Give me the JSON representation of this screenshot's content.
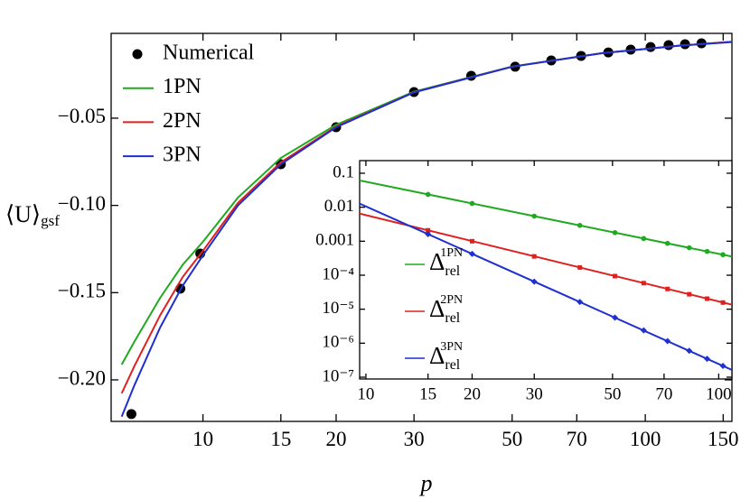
{
  "chart_data": [
    {
      "type": "line",
      "xlabel": "p",
      "ylabel": "⟨U⟩",
      "ylabel_sub": "gsf",
      "xscale": "log",
      "xlim": [
        6.2,
        157
      ],
      "xticks": [
        10,
        15,
        20,
        30,
        50,
        70,
        100,
        150
      ],
      "ylim": [
        -0.2238,
        -0.0014
      ],
      "yticks": [
        {
          "value": -0.2,
          "label": "−0.20"
        },
        {
          "value": -0.15,
          "label": "−0.15"
        },
        {
          "value": -0.1,
          "label": "−0.10"
        },
        {
          "value": -0.05,
          "label": "−0.05"
        }
      ],
      "series": [
        {
          "name": "Numerical",
          "type": "scatter",
          "color": "#000000",
          "x": [
            6.89,
            8.89,
            9.86,
            15,
            20,
            30,
            40.4,
            50.8,
            61.3,
            71.6,
            82.5,
            92.7,
            102.8,
            112.9,
            123,
            134
          ],
          "values": [
            -0.2196,
            -0.1477,
            -0.1276,
            -0.0764,
            -0.0552,
            -0.035,
            -0.0257,
            -0.0205,
            -0.0169,
            -0.0143,
            -0.0123,
            -0.0107,
            -0.0092,
            -0.0081,
            -0.0076,
            -0.0071
          ]
        },
        {
          "name": "1PN",
          "color": "#1faa1f",
          "x": [
            6.55,
            7,
            8,
            9,
            10,
            12,
            15,
            20,
            30,
            50,
            80,
            120,
            157
          ],
          "values": [
            -0.1912,
            -0.178,
            -0.153,
            -0.134,
            -0.1208,
            -0.0955,
            -0.0728,
            -0.0538,
            -0.0348,
            -0.0204,
            -0.0127,
            -0.0084,
            -0.0062
          ]
        },
        {
          "name": "2PN",
          "color": "#e0201f",
          "x": [
            6.55,
            7,
            8,
            9,
            10,
            12,
            15,
            20,
            30,
            50,
            80,
            120,
            157
          ],
          "values": [
            -0.2077,
            -0.192,
            -0.163,
            -0.141,
            -0.126,
            -0.0985,
            -0.0753,
            -0.0548,
            -0.0351,
            -0.0205,
            -0.0127,
            -0.0084,
            -0.0062
          ]
        },
        {
          "name": "3PN",
          "color": "#1f2fd0",
          "x": [
            6.55,
            7,
            8,
            9,
            10,
            12,
            15,
            20,
            30,
            50,
            80,
            120,
            157
          ],
          "values": [
            -0.2211,
            -0.203,
            -0.17,
            -0.146,
            -0.1286,
            -0.1,
            -0.0764,
            -0.0552,
            -0.0352,
            -0.0205,
            -0.0127,
            -0.0084,
            -0.0064
          ]
        }
      ]
    },
    {
      "type": "line",
      "xscale": "log",
      "yscale": "log",
      "xlim": [
        9.6,
        109
      ],
      "xticks": [
        10,
        15,
        20,
        30,
        50,
        70,
        100
      ],
      "ylim": [
        8.85e-08,
        0.235
      ],
      "yticks": [
        {
          "value": 1e-07,
          "label": "10⁻⁷"
        },
        {
          "value": 1e-06,
          "label": "10⁻⁶"
        },
        {
          "value": 1e-05,
          "label": "10⁻⁵"
        },
        {
          "value": 0.0001,
          "label": "10⁻⁴"
        },
        0.001,
        0.01,
        0.1
      ],
      "series": [
        {
          "name_symbol": "Δ",
          "name_sub": "rel",
          "name_sup": "1PN",
          "color": "#1faa1f",
          "x": [
            9.6,
            109
          ],
          "values": [
            0.0614,
            0.000354
          ]
        },
        {
          "name_symbol": "Δ",
          "name_sub": "rel",
          "name_sup": "2PN",
          "color": "#e0201f",
          "x": [
            9.6,
            109
          ],
          "values": [
            0.0065,
            1.36e-05
          ]
        },
        {
          "name_symbol": "Δ",
          "name_sub": "rel",
          "name_sup": "3PN",
          "color": "#1f2fd0",
          "x": [
            9.6,
            109
          ],
          "values": [
            0.0128,
            1.63e-07
          ]
        },
        {
          "type": "scatter",
          "marker": "circle",
          "color": "#1faa1f",
          "x": [
            15,
            20,
            30,
            40.4,
            50.8,
            61.3,
            71.6,
            82.5,
            92.7,
            102.8
          ],
          "values": [
            0.0238,
            0.0129,
            0.00548,
            0.00292,
            0.00179,
            0.0012,
            0.000865,
            0.000643,
            0.000501,
            0.000402
          ]
        },
        {
          "type": "scatter",
          "marker": "square",
          "color": "#e0201f",
          "x": [
            15,
            20,
            30,
            40.4,
            50.8,
            61.3,
            71.6,
            82.5,
            92.7,
            102.8
          ],
          "values": [
            0.00209,
            0.001,
            0.000358,
            0.000169,
            9.4e-05,
            5.85e-05,
            3.94e-05,
            2.75e-05,
            2.04e-05,
            1.57e-05
          ]
        },
        {
          "type": "scatter",
          "marker": "diamond",
          "color": "#1f2fd0",
          "x": [
            15,
            20,
            30,
            40.4,
            50.8,
            61.3,
            71.6,
            82.5,
            92.7,
            102.8
          ],
          "values": [
            0.00161,
            0.000425,
            6.49e-05,
            1.64e-05,
            5.64e-06,
            2.38e-06,
            1.15e-06,
            6e-07,
            3.48e-07,
            2.15e-07
          ]
        }
      ]
    }
  ]
}
